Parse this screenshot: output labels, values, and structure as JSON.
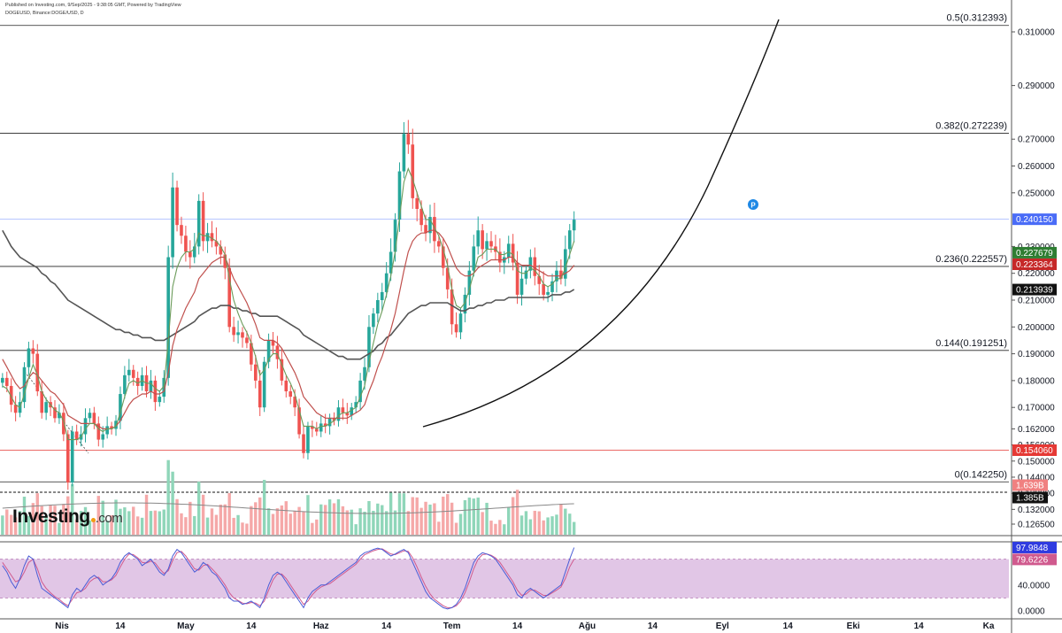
{
  "header": {
    "published": "Published on Investing.com, 9/Sep/2025 - 9:38:05 GMT, Powered by TradingView",
    "symbol": "DOGEUSD, Binance:DOGE/USD, D"
  },
  "logo": {
    "text": "Investing",
    "suffix": ".com"
  },
  "colors": {
    "up": "#26a69a",
    "down": "#ef5350",
    "ma_fast": "#6b9b5a",
    "ma_mid": "#c0504d",
    "ma_slow": "#555555",
    "fib": "#222222",
    "support": "#e53935",
    "blueline": "#9fb4ff",
    "stoch_k": "#4a5cd6",
    "stoch_d": "#d05a8e",
    "stoch_band": "#e1c6e6",
    "vol_up": "#8fd6b9",
    "vol_down": "#f5a8a8"
  },
  "chart_data": [
    {
      "type": "line",
      "title": "DOGEUSD, Binance:DOGE/USD, D",
      "price_axis": {
        "ylim": [
          0.12,
          0.315
        ],
        "ticks": [
          "0.310000",
          "0.290000",
          "0.270000",
          "0.260000",
          "0.250000",
          "0.230000",
          "0.220000",
          "0.210000",
          "0.200000",
          "0.190000",
          "0.180000",
          "0.170000",
          "0.162000",
          "0.156000",
          "0.150000",
          "0.144000",
          "0.138000",
          "0.132000",
          "0.126500"
        ],
        "tick_values": [
          0.31,
          0.29,
          0.27,
          0.26,
          0.25,
          0.23,
          0.22,
          0.21,
          0.2,
          0.19,
          0.18,
          0.17,
          0.162,
          0.156,
          0.15,
          0.144,
          0.138,
          0.132,
          0.1265
        ]
      },
      "x_axis": {
        "ticks": [
          "Nis",
          "14",
          "May",
          "14",
          "Haz",
          "14",
          "Tem",
          "14",
          "Ağu",
          "14",
          "Eyl",
          "14",
          "Eki",
          "14",
          "Ka"
        ],
        "tick_days": [
          0,
          15,
          30,
          45,
          61,
          76,
          91,
          106,
          122,
          137,
          153,
          168,
          183,
          198,
          214
        ]
      },
      "fib_levels": [
        {
          "label": "0.5(0.312393)",
          "value": 0.312393
        },
        {
          "label": "0.382(0.272239)",
          "value": 0.272239
        },
        {
          "label": "0.236(0.222557)",
          "value": 0.222557
        },
        {
          "label": "0.144(0.191251)",
          "value": 0.191251
        },
        {
          "label": "0(0.142250)",
          "value": 0.14225
        }
      ],
      "support_line": {
        "value": 0.15406
      },
      "current_line": {
        "value": 0.24015
      },
      "price_tags": [
        {
          "text": "0.240150",
          "value": 0.24015,
          "bg": "#4a6cf7"
        },
        {
          "text": "0.227679",
          "value": 0.227679,
          "bg": "#2e7d32"
        },
        {
          "text": "0.223364",
          "value": 0.223364,
          "bg": "#c62828"
        },
        {
          "text": "0.213939",
          "value": 0.213939,
          "bg": "#111111"
        },
        {
          "text": "0.154060",
          "value": 0.15406,
          "bg": "#e53935"
        }
      ],
      "volume_tags": [
        {
          "text": "1.639B",
          "bg": "#f08080"
        },
        {
          "text": "1.385B",
          "bg": "#111111"
        }
      ],
      "closes": [
        0.181,
        0.178,
        0.171,
        0.168,
        0.172,
        0.185,
        0.192,
        0.19,
        0.176,
        0.168,
        0.172,
        0.17,
        0.166,
        0.168,
        0.16,
        0.142,
        0.161,
        0.158,
        0.16,
        0.166,
        0.168,
        0.164,
        0.158,
        0.16,
        0.163,
        0.162,
        0.165,
        0.175,
        0.182,
        0.184,
        0.181,
        0.178,
        0.182,
        0.176,
        0.18,
        0.172,
        0.174,
        0.181,
        0.226,
        0.252,
        0.238,
        0.234,
        0.228,
        0.226,
        0.23,
        0.247,
        0.232,
        0.235,
        0.232,
        0.23,
        0.227,
        0.222,
        0.2,
        0.197,
        0.198,
        0.196,
        0.194,
        0.186,
        0.18,
        0.17,
        0.187,
        0.195,
        0.193,
        0.188,
        0.18,
        0.176,
        0.174,
        0.17,
        0.16,
        0.153,
        0.163,
        0.162,
        0.161,
        0.164,
        0.163,
        0.166,
        0.165,
        0.17,
        0.168,
        0.167,
        0.17,
        0.172,
        0.18,
        0.185,
        0.2,
        0.205,
        0.21,
        0.213,
        0.22,
        0.228,
        0.24,
        0.258,
        0.272,
        0.268,
        0.248,
        0.244,
        0.238,
        0.235,
        0.241,
        0.232,
        0.23,
        0.222,
        0.214,
        0.201,
        0.198,
        0.205,
        0.212,
        0.221,
        0.23,
        0.236,
        0.229,
        0.232,
        0.23,
        0.228,
        0.224,
        0.226,
        0.231,
        0.224,
        0.212,
        0.218,
        0.221,
        0.226,
        0.219,
        0.216,
        0.212,
        0.213,
        0.217,
        0.221,
        0.218,
        0.229,
        0.236,
        0.24
      ],
      "ma_fast": [
        0.178,
        0.177,
        0.174,
        0.171,
        0.17,
        0.175,
        0.181,
        0.186,
        0.182,
        0.176,
        0.173,
        0.171,
        0.169,
        0.168,
        0.165,
        0.158,
        0.158,
        0.158,
        0.159,
        0.162,
        0.164,
        0.164,
        0.162,
        0.161,
        0.162,
        0.162,
        0.163,
        0.168,
        0.174,
        0.179,
        0.18,
        0.179,
        0.18,
        0.179,
        0.179,
        0.177,
        0.176,
        0.178,
        0.195,
        0.215,
        0.222,
        0.226,
        0.228,
        0.228,
        0.229,
        0.235,
        0.234,
        0.234,
        0.233,
        0.232,
        0.23,
        0.227,
        0.218,
        0.21,
        0.205,
        0.201,
        0.198,
        0.194,
        0.189,
        0.182,
        0.184,
        0.188,
        0.19,
        0.19,
        0.186,
        0.182,
        0.179,
        0.175,
        0.169,
        0.163,
        0.163,
        0.163,
        0.162,
        0.163,
        0.163,
        0.164,
        0.165,
        0.167,
        0.168,
        0.168,
        0.169,
        0.17,
        0.174,
        0.178,
        0.187,
        0.194,
        0.201,
        0.206,
        0.212,
        0.219,
        0.228,
        0.241,
        0.254,
        0.259,
        0.255,
        0.25,
        0.245,
        0.24,
        0.24,
        0.237,
        0.234,
        0.229,
        0.223,
        0.214,
        0.208,
        0.207,
        0.209,
        0.214,
        0.22,
        0.226,
        0.227,
        0.229,
        0.229,
        0.229,
        0.227,
        0.227,
        0.228,
        0.227,
        0.221,
        0.22,
        0.22,
        0.222,
        0.221,
        0.219,
        0.216,
        0.215,
        0.216,
        0.218,
        0.218,
        0.222,
        0.227,
        0.232
      ],
      "ma_mid": [
        0.188,
        0.185,
        0.182,
        0.179,
        0.177,
        0.178,
        0.181,
        0.183,
        0.182,
        0.18,
        0.178,
        0.176,
        0.175,
        0.173,
        0.171,
        0.167,
        0.166,
        0.165,
        0.164,
        0.164,
        0.164,
        0.164,
        0.163,
        0.162,
        0.162,
        0.162,
        0.163,
        0.165,
        0.168,
        0.171,
        0.173,
        0.174,
        0.175,
        0.175,
        0.176,
        0.175,
        0.175,
        0.176,
        0.183,
        0.193,
        0.199,
        0.203,
        0.207,
        0.21,
        0.213,
        0.218,
        0.22,
        0.222,
        0.224,
        0.225,
        0.226,
        0.226,
        0.222,
        0.218,
        0.215,
        0.212,
        0.209,
        0.205,
        0.201,
        0.196,
        0.195,
        0.195,
        0.195,
        0.194,
        0.192,
        0.189,
        0.186,
        0.183,
        0.179,
        0.174,
        0.172,
        0.17,
        0.168,
        0.167,
        0.166,
        0.166,
        0.166,
        0.166,
        0.166,
        0.166,
        0.167,
        0.168,
        0.169,
        0.171,
        0.176,
        0.18,
        0.185,
        0.189,
        0.194,
        0.199,
        0.205,
        0.213,
        0.221,
        0.228,
        0.232,
        0.234,
        0.235,
        0.235,
        0.236,
        0.236,
        0.235,
        0.233,
        0.23,
        0.226,
        0.222,
        0.22,
        0.219,
        0.219,
        0.22,
        0.222,
        0.223,
        0.224,
        0.225,
        0.225,
        0.225,
        0.225,
        0.226,
        0.226,
        0.224,
        0.223,
        0.223,
        0.223,
        0.222,
        0.221,
        0.22,
        0.219,
        0.219,
        0.219,
        0.219,
        0.22,
        0.221,
        0.223
      ],
      "ma_slow": [
        0.236,
        0.233,
        0.23,
        0.228,
        0.226,
        0.225,
        0.224,
        0.223,
        0.222,
        0.22,
        0.219,
        0.217,
        0.216,
        0.214,
        0.212,
        0.21,
        0.209,
        0.208,
        0.207,
        0.206,
        0.205,
        0.204,
        0.203,
        0.202,
        0.201,
        0.2,
        0.199,
        0.199,
        0.198,
        0.198,
        0.197,
        0.197,
        0.196,
        0.196,
        0.196,
        0.195,
        0.195,
        0.195,
        0.196,
        0.197,
        0.198,
        0.199,
        0.2,
        0.201,
        0.202,
        0.204,
        0.205,
        0.206,
        0.207,
        0.207,
        0.208,
        0.208,
        0.208,
        0.207,
        0.207,
        0.206,
        0.206,
        0.205,
        0.205,
        0.204,
        0.204,
        0.204,
        0.204,
        0.204,
        0.203,
        0.202,
        0.201,
        0.2,
        0.199,
        0.197,
        0.196,
        0.195,
        0.194,
        0.193,
        0.192,
        0.191,
        0.19,
        0.189,
        0.189,
        0.188,
        0.188,
        0.188,
        0.188,
        0.189,
        0.19,
        0.191,
        0.193,
        0.194,
        0.196,
        0.197,
        0.199,
        0.201,
        0.203,
        0.205,
        0.206,
        0.207,
        0.208,
        0.208,
        0.209,
        0.209,
        0.209,
        0.209,
        0.209,
        0.208,
        0.207,
        0.206,
        0.206,
        0.207,
        0.207,
        0.208,
        0.208,
        0.209,
        0.209,
        0.21,
        0.21,
        0.21,
        0.211,
        0.211,
        0.211,
        0.211,
        0.211,
        0.211,
        0.211,
        0.211,
        0.211,
        0.211,
        0.212,
        0.212,
        0.212,
        0.213,
        0.213,
        0.214
      ]
    },
    {
      "type": "bar",
      "title": "Volume",
      "volume_ma_label": "1.385B"
    },
    {
      "type": "line",
      "title": "Stochastic RSI",
      "ylim": [
        0,
        100
      ],
      "ticks": [
        "97.9848",
        "79.6226",
        "40.0000",
        "0.0000"
      ],
      "band": [
        20,
        80
      ],
      "k_series": [
        70,
        60,
        45,
        35,
        50,
        70,
        85,
        80,
        55,
        35,
        30,
        25,
        20,
        15,
        10,
        5,
        25,
        35,
        30,
        40,
        50,
        55,
        50,
        40,
        45,
        50,
        60,
        75,
        85,
        90,
        85,
        80,
        70,
        75,
        80,
        70,
        60,
        55,
        65,
        85,
        95,
        90,
        80,
        70,
        60,
        65,
        75,
        70,
        60,
        55,
        45,
        35,
        20,
        15,
        15,
        10,
        12,
        15,
        10,
        5,
        20,
        40,
        55,
        60,
        55,
        45,
        35,
        25,
        15,
        5,
        20,
        30,
        35,
        40,
        40,
        45,
        50,
        55,
        60,
        65,
        70,
        75,
        85,
        90,
        92,
        95,
        97,
        95,
        90,
        85,
        88,
        92,
        95,
        90,
        75,
        60,
        45,
        30,
        20,
        15,
        10,
        5,
        3,
        5,
        10,
        20,
        35,
        55,
        75,
        85,
        90,
        88,
        85,
        80,
        70,
        60,
        50,
        40,
        25,
        20,
        30,
        35,
        30,
        25,
        20,
        25,
        30,
        35,
        40,
        60,
        80,
        98
      ],
      "d_series": [
        75,
        65,
        55,
        45,
        48,
        60,
        75,
        80,
        65,
        45,
        35,
        28,
        22,
        18,
        12,
        8,
        18,
        28,
        30,
        35,
        45,
        50,
        52,
        45,
        45,
        48,
        55,
        68,
        80,
        88,
        87,
        82,
        75,
        74,
        77,
        74,
        65,
        58,
        62,
        78,
        90,
        92,
        85,
        75,
        65,
        63,
        70,
        72,
        65,
        58,
        50,
        40,
        28,
        20,
        16,
        12,
        11,
        13,
        12,
        8,
        15,
        32,
        48,
        57,
        57,
        50,
        40,
        30,
        20,
        10,
        15,
        25,
        32,
        37,
        40,
        42,
        47,
        52,
        57,
        62,
        67,
        72,
        80,
        87,
        90,
        93,
        95,
        96,
        92,
        88,
        87,
        90,
        93,
        92,
        82,
        68,
        52,
        38,
        26,
        18,
        13,
        8,
        5,
        5,
        8,
        15,
        28,
        45,
        65,
        80,
        87,
        88,
        86,
        82,
        75,
        65,
        55,
        45,
        32,
        24,
        26,
        32,
        32,
        28,
        24,
        24,
        28,
        32,
        37,
        50,
        68,
        80
      ]
    }
  ]
}
